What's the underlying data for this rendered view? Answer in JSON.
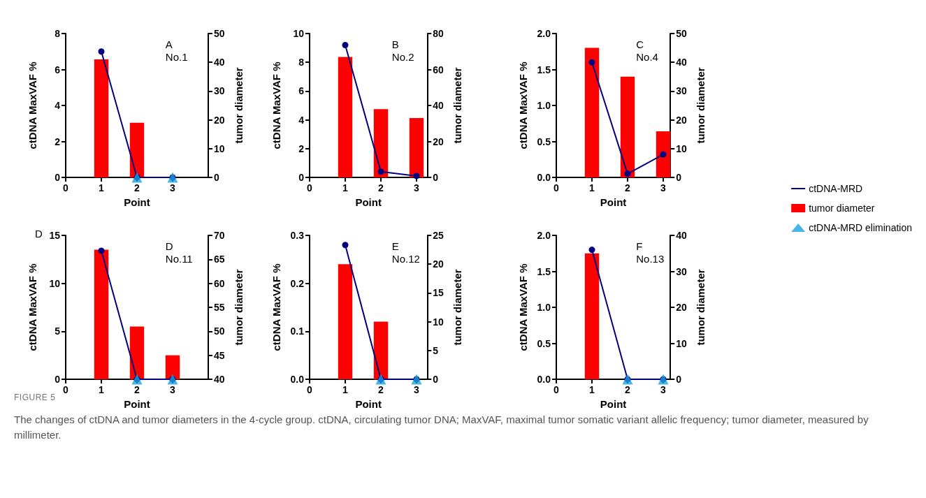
{
  "chart_data": [
    {
      "type": "bar",
      "xlabel": "Point",
      "ylabel": "ctDNA MaxVAF %",
      "y2label": "tumor diameter",
      "annotations": [
        "A\nNo.1"
      ],
      "x": [
        1,
        2,
        3
      ],
      "xlim": [
        0,
        4
      ],
      "xticks": [
        0,
        1,
        2,
        3
      ],
      "ylim": [
        0,
        8
      ],
      "yticks": [
        0,
        2,
        4,
        6,
        8
      ],
      "y2lim": [
        0,
        50
      ],
      "y2ticks": [
        0,
        10,
        20,
        30,
        40,
        50
      ],
      "series": [
        {
          "type": "line",
          "color": "#000080",
          "marker": "circle",
          "values": [
            7.0,
            0,
            0
          ]
        },
        {
          "type": "bar",
          "axis": "y2",
          "color": "#ff0000",
          "values": [
            41,
            19,
            null
          ]
        },
        {
          "type": "scatter",
          "color": "#1ba1e2",
          "marker": "triangle",
          "values": [
            null,
            0,
            0
          ]
        }
      ]
    },
    {
      "type": "bar",
      "xlabel": "Point",
      "ylabel": "ctDNA MaxVAF %",
      "y2label": "tumor diameter",
      "annotations": [
        "B\nNo.2"
      ],
      "x": [
        1,
        2,
        3
      ],
      "xlim": [
        0,
        3.3
      ],
      "xticks": [
        0,
        1,
        2,
        3
      ],
      "ylim": [
        0,
        10
      ],
      "yticks": [
        0,
        2,
        4,
        6,
        8,
        10
      ],
      "y2lim": [
        0,
        80
      ],
      "y2ticks": [
        0,
        20,
        40,
        60,
        80
      ],
      "series": [
        {
          "type": "line",
          "color": "#000080",
          "marker": "circle",
          "values": [
            9.2,
            0.4,
            0.1
          ]
        },
        {
          "type": "bar",
          "axis": "y2",
          "color": "#ff0000",
          "values": [
            67,
            38,
            33
          ]
        }
      ]
    },
    {
      "type": "bar",
      "xlabel": "Point",
      "ylabel": "ctDNA MaxVAF %",
      "y2label": "tumor diameter",
      "annotations": [
        "C\nNo.4"
      ],
      "x": [
        1,
        2,
        3
      ],
      "xlim": [
        0,
        3.2
      ],
      "xticks": [
        0,
        1,
        2,
        3
      ],
      "ylim": [
        0,
        2.0
      ],
      "yticks": [
        {
          "value": 0,
          "label": "0.0"
        },
        0.5,
        {
          "value": 1,
          "label": "1.0"
        },
        1.5,
        {
          "value": 2,
          "label": "2.0"
        }
      ],
      "y2lim": [
        0,
        50
      ],
      "y2ticks": [
        0,
        10,
        20,
        30,
        40,
        50
      ],
      "series": [
        {
          "type": "line",
          "color": "#000080",
          "marker": "circle",
          "values": [
            1.6,
            0.05,
            0.32
          ]
        },
        {
          "type": "bar",
          "axis": "y2",
          "color": "#ff0000",
          "values": [
            45,
            35,
            16
          ]
        }
      ]
    },
    {
      "type": "bar",
      "xlabel": "Point",
      "ylabel": "ctDNA MaxVAF %",
      "y2label": "tumor diameter",
      "annotations": [
        "D",
        "D\nNo.11"
      ],
      "x": [
        1,
        2,
        3
      ],
      "xlim": [
        0,
        4
      ],
      "xticks": [
        0,
        1,
        2,
        3
      ],
      "ylim": [
        0,
        15
      ],
      "yticks": [
        0,
        5,
        10,
        15
      ],
      "y2lim": [
        40,
        70
      ],
      "y2ticks": [
        40,
        45,
        50,
        55,
        60,
        65,
        70
      ],
      "series": [
        {
          "type": "line",
          "color": "#000080",
          "marker": "circle",
          "values": [
            13.4,
            0,
            0
          ]
        },
        {
          "type": "bar",
          "axis": "y2",
          "color": "#ff0000",
          "values": [
            67,
            51,
            45
          ]
        },
        {
          "type": "scatter",
          "color": "#1ba1e2",
          "marker": "triangle",
          "values": [
            null,
            0,
            0
          ]
        }
      ]
    },
    {
      "type": "bar",
      "xlabel": "Point",
      "ylabel": "ctDNA MaxVAF %",
      "y2label": "tumor diameter",
      "annotations": [
        "E\nNo.12"
      ],
      "x": [
        1,
        2,
        3
      ],
      "xlim": [
        0,
        3.3
      ],
      "xticks": [
        0,
        1,
        2,
        3
      ],
      "ylim": [
        0,
        0.3
      ],
      "yticks": [
        {
          "value": 0,
          "label": "0.0"
        },
        0.1,
        0.2,
        0.3
      ],
      "y2lim": [
        0,
        25
      ],
      "y2ticks": [
        0,
        5,
        10,
        15,
        20,
        25
      ],
      "series": [
        {
          "type": "line",
          "color": "#000080",
          "marker": "circle",
          "values": [
            0.28,
            0,
            0
          ]
        },
        {
          "type": "bar",
          "axis": "y2",
          "color": "#ff0000",
          "values": [
            20,
            10,
            null
          ]
        },
        {
          "type": "scatter",
          "color": "#1ba1e2",
          "marker": "triangle",
          "values": [
            null,
            0,
            0
          ]
        }
      ]
    },
    {
      "type": "bar",
      "xlabel": "Point",
      "ylabel": "ctDNA MaxVAF %",
      "y2label": "tumor diameter",
      "annotations": [
        "F\nNo.13"
      ],
      "legend": "right",
      "x": [
        1,
        2,
        3
      ],
      "xlim": [
        0,
        3.2
      ],
      "xticks": [
        0,
        1,
        2,
        3
      ],
      "ylim": [
        0,
        2.0
      ],
      "yticks": [
        {
          "value": 0,
          "label": "0.0"
        },
        0.5,
        {
          "value": 1,
          "label": "1.0"
        },
        1.5,
        {
          "value": 2,
          "label": "2.0"
        }
      ],
      "y2lim": [
        0,
        40
      ],
      "y2ticks": [
        0,
        10,
        20,
        30,
        40
      ],
      "series": [
        {
          "name": "ctDNA-MRD",
          "type": "line",
          "color": "#000080",
          "marker": "circle",
          "values": [
            1.8,
            0,
            0
          ]
        },
        {
          "name": "tumor diameter",
          "type": "bar",
          "axis": "y2",
          "color": "#ff0000",
          "values": [
            35,
            null,
            null
          ]
        },
        {
          "name": "ctDNA-MRD elimination",
          "type": "scatter",
          "color": "#1ba1e2",
          "marker": "triangle",
          "values": [
            null,
            0,
            0
          ]
        }
      ]
    },
    {
      "type": "other",
      "title": "FIGURE 5",
      "annotations": [
        "The changes of ctDNA and tumor diameters in the 4-cycle group. ctDNA, circulating tumor DNA; MaxVAF, maximal tumor somatic variant allelic frequency; tumor diameter, measured by millimeter."
      ]
    }
  ]
}
